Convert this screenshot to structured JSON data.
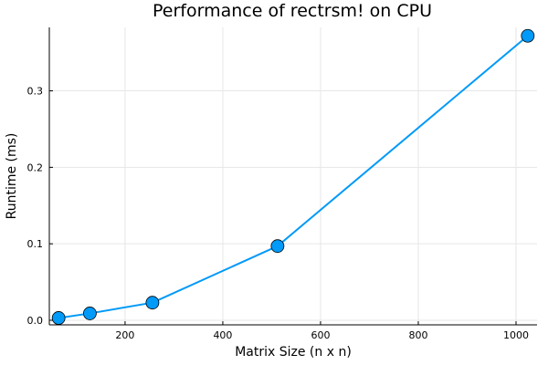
{
  "chart_data": {
    "type": "line",
    "title": "Performance of rectrsm! on CPU",
    "xlabel": "Matrix Size (n x n)",
    "ylabel": "Runtime (ms)",
    "xlim": [
      45,
      1043
    ],
    "ylim": [
      -0.006,
      0.383
    ],
    "xticks": [
      200,
      400,
      600,
      800,
      1000
    ],
    "yticks": [
      0.0,
      0.1,
      0.2,
      0.3
    ],
    "xtick_labels": [
      "200",
      "400",
      "600",
      "800",
      "1000"
    ],
    "ytick_labels": [
      "0.0",
      "0.1",
      "0.2",
      "0.3"
    ],
    "grid": true,
    "legend": "none",
    "series": [
      {
        "color": "#009af9",
        "marker": "circle",
        "x": [
          64,
          128,
          256,
          512,
          1024
        ],
        "y": [
          0.003,
          0.009,
          0.023,
          0.097,
          0.372
        ]
      }
    ]
  }
}
